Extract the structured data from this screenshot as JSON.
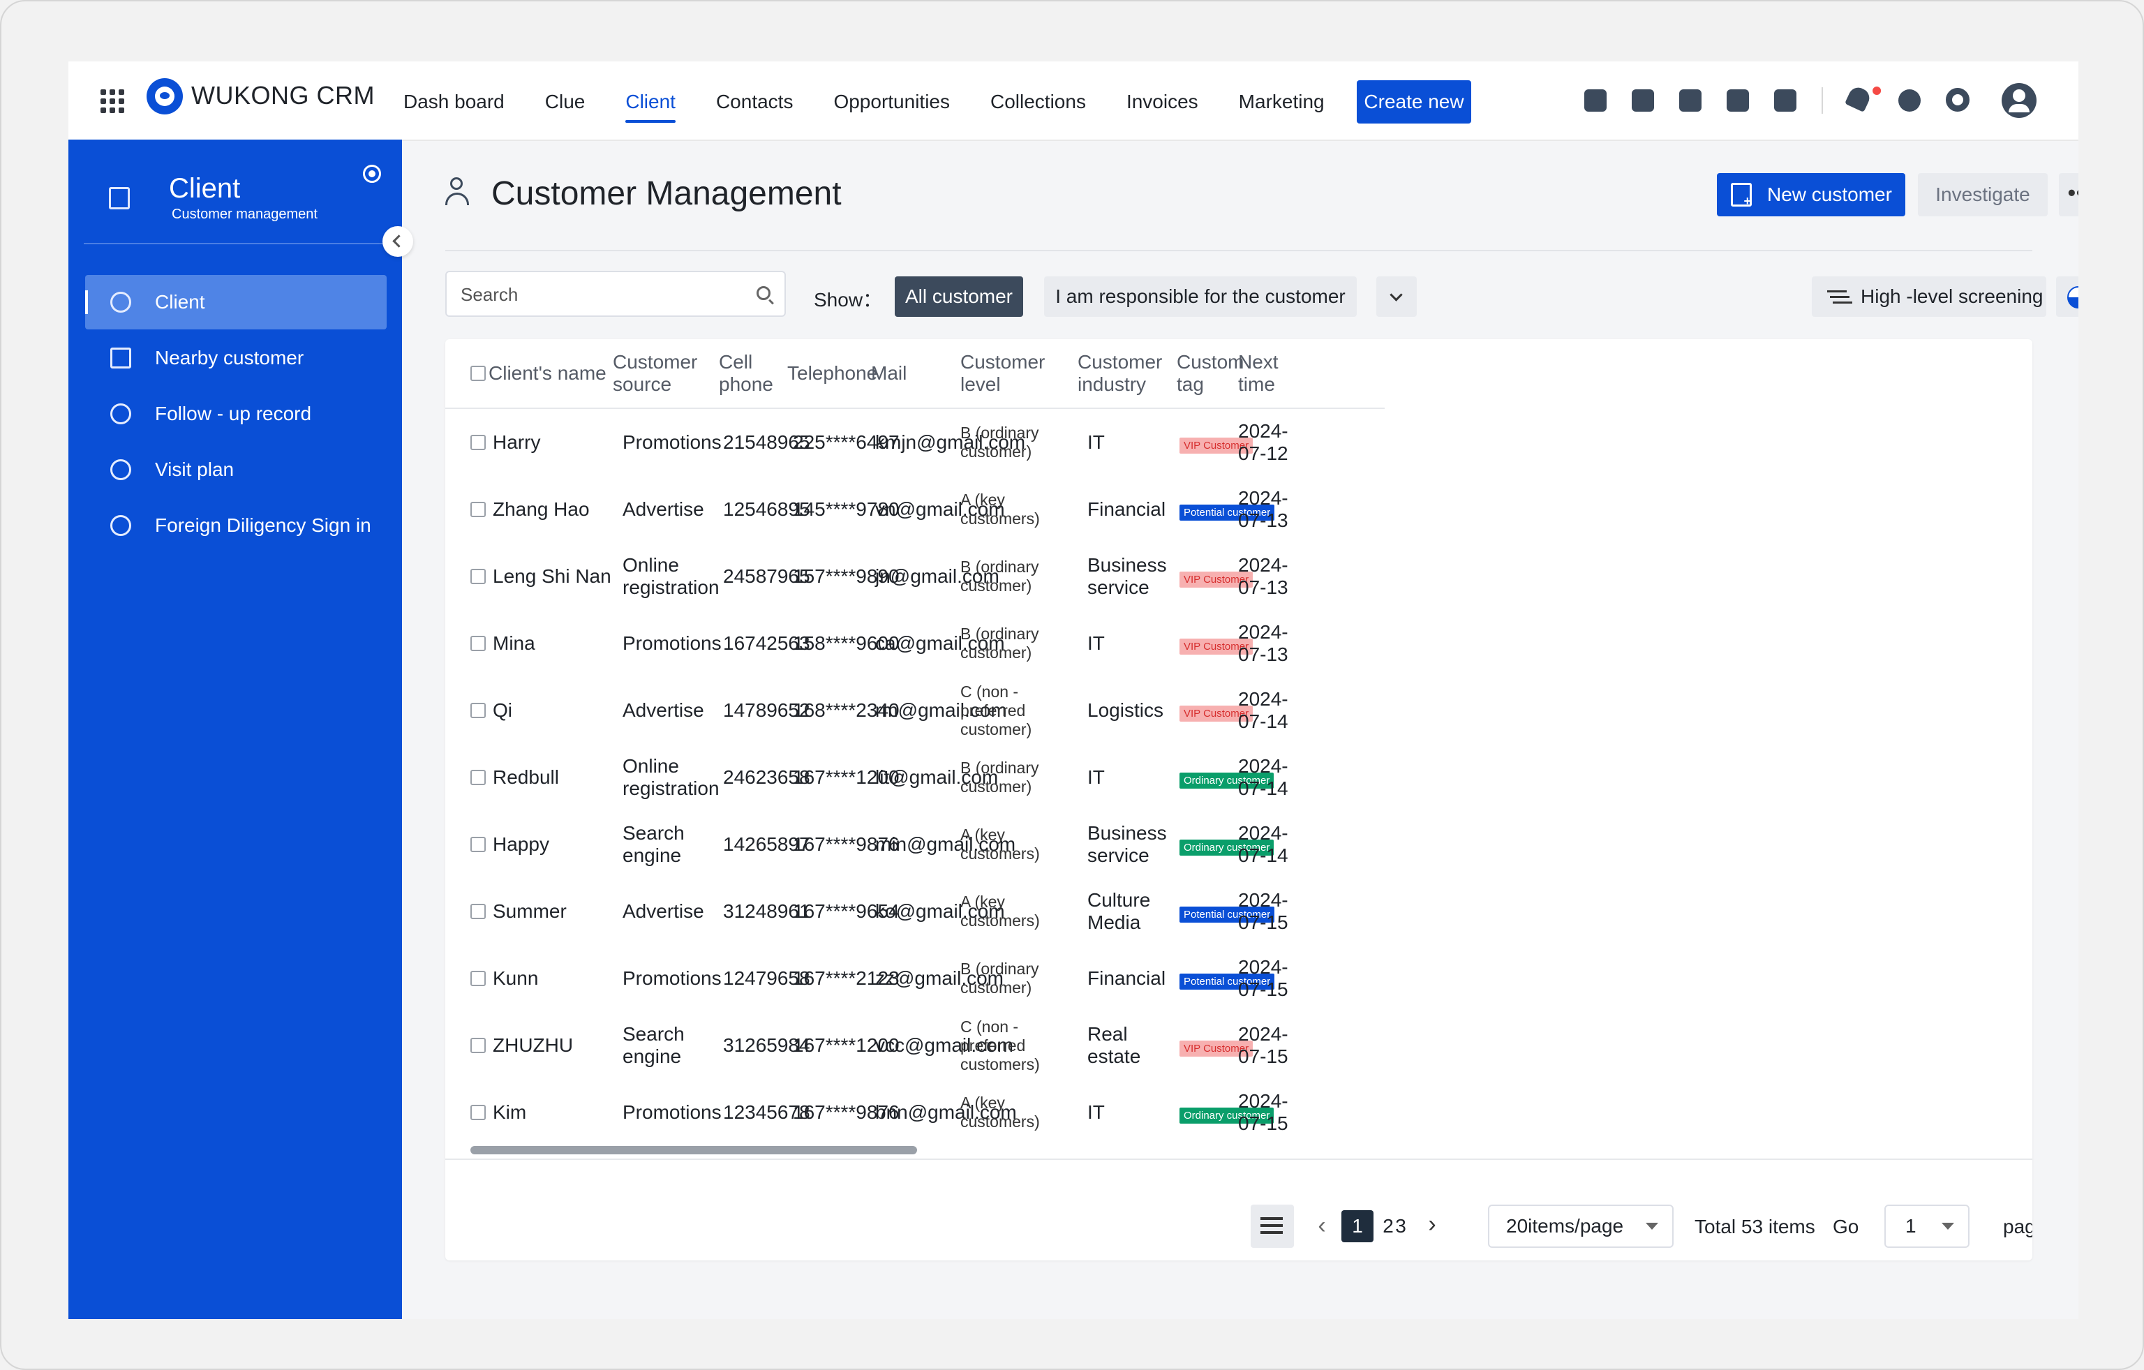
{
  "brand": "WUKONG CRM",
  "nav": {
    "items": [
      "Dash board",
      "Clue",
      "Client",
      "Contacts",
      "Opportunities",
      "Collections",
      "Invoices",
      "Marketing"
    ],
    "active": "Client",
    "create_label": "Create new"
  },
  "sidebar": {
    "title": "Client",
    "subtitle": "Customer management",
    "items": [
      "Client",
      "Nearby customer",
      "Follow - up record",
      "Visit plan",
      "Foreign Diligency Sign in"
    ],
    "active": "Client"
  },
  "main": {
    "title": "Customer Management",
    "new_customer_label": "New customer",
    "investigate_label": "Investigate",
    "more_label": "•••",
    "search_placeholder": "Search",
    "show_label": "Show：",
    "segment_all": "All customer",
    "segment_responsible": "I am responsible for the customer",
    "screening_label": "High -level screening"
  },
  "table": {
    "headers": [
      "Client's name",
      "Customer source",
      "Cell phone",
      "Telephone",
      "Mail",
      "Customer level",
      "Customer industry",
      "Custom tag",
      "Next time"
    ],
    "rows": [
      {
        "name": "Harry",
        "source": "Promotions",
        "cell": "21548965",
        "tel": "225****6497",
        "mail": "kmjn@gmail.com",
        "level": "B (ordinary customer)",
        "industry": "IT",
        "tag": "VIP Customer",
        "next": "2024-07-12"
      },
      {
        "name": "Zhang Hao",
        "source": "Advertise",
        "cell": "12546895",
        "tel": "145****9780",
        "mail": "vn@gmail.com",
        "level": "A (key customers)",
        "industry": "Financial",
        "tag": "Potential customer",
        "next": "2024-07-13"
      },
      {
        "name": "Leng Shi Nan",
        "source": "Online registration",
        "cell": "24587965",
        "tel": "157****9890",
        "mail": "jn@gmail.com",
        "level": "B (ordinary customer)",
        "industry": "Business service",
        "tag": "VIP Customer",
        "next": "2024-07-13"
      },
      {
        "name": "Mina",
        "source": "Promotions",
        "cell": "16742563",
        "tel": "158****9600",
        "mail": "ca@gmail.com",
        "level": "B (ordinary customer)",
        "industry": "IT",
        "tag": "VIP Customer",
        "next": "2024-07-13"
      },
      {
        "name": "Qi",
        "source": "Advertise",
        "cell": "14789652",
        "tel": "168****2340",
        "mail": "rm@gmail.com",
        "level": "C (non -preferred customer)",
        "industry": "Logistics",
        "tag": "VIP Customer",
        "next": "2024-07-14"
      },
      {
        "name": "Redbull",
        "source": "Online registration",
        "cell": "24623658",
        "tel": "167****1200",
        "mail": "lit@gmail.com",
        "level": "B (ordinary customer)",
        "industry": "IT",
        "tag": "Ordinary customer",
        "next": "2024-07-14"
      },
      {
        "name": "Happy",
        "source": "Search engine",
        "cell": "14265897",
        "tel": "167****9876",
        "mail": "min@gmail.com",
        "level": "A (key customers)",
        "industry": "Business service",
        "tag": "Ordinary customer",
        "next": "2024-07-14"
      },
      {
        "name": "Summer",
        "source": "Advertise",
        "cell": "31248961",
        "tel": "167****9654",
        "mail": "ko@gmail.com",
        "level": "A (key customers)",
        "industry": "Culture Media",
        "tag": "Potential customer",
        "next": "2024-07-15"
      },
      {
        "name": "Kunn",
        "source": "Promotions",
        "cell": "12479658",
        "tel": "167****2123",
        "mail": "zz@gmail.com",
        "level": "B (ordinary customer)",
        "industry": "Financial",
        "tag": "Potential customer",
        "next": "2024-07-15"
      },
      {
        "name": "ZHUZHU",
        "source": "Search engine",
        "cell": "31265984",
        "tel": "167****1200",
        "mail": "vcc@gmail.com",
        "level": "C (non -preferred customers)",
        "industry": "Real estate",
        "tag": "VIP Customer",
        "next": "2024-07-15"
      },
      {
        "name": "Kim",
        "source": "Promotions",
        "cell": "12345678",
        "tel": "167****9876",
        "mail": "bnn@gmail.com",
        "level": "A (key customers)",
        "industry": "IT",
        "tag": "Ordinary customer",
        "next": "2024-07-15"
      }
    ]
  },
  "pagination": {
    "pages": [
      "1",
      "2",
      "3"
    ],
    "current": "1",
    "page_size": "20items/page",
    "total": "Total 53 items",
    "go_label": "Go",
    "go_value": "1",
    "page_label": "page"
  },
  "colors": {
    "primary": "#0a4fd6",
    "vip_tag_bg": "#f7b0b0",
    "vip_tag_text": "#d62d2d",
    "ordinary_tag": "#0a9e6a",
    "potential_tag": "#0a4fd6"
  },
  "icons": {
    "sidebar": [
      "user-icon",
      "list-icon",
      "record-icon",
      "visit-icon",
      "sign-in-icon"
    ]
  }
}
